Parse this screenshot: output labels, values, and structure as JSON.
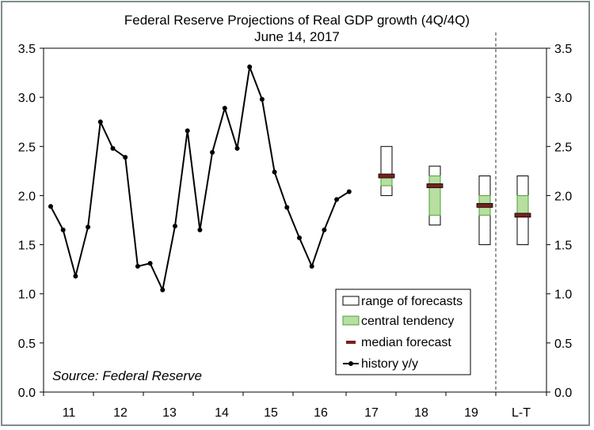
{
  "chart_data": {
    "type": "line",
    "title": "Federal Reserve Projections of Real GDP growth (4Q/4Q)",
    "subtitle": "June 14, 2017",
    "source": "Source: Federal Reserve",
    "ylim": [
      0,
      3.5
    ],
    "yticks": [
      "0.0",
      "0.5",
      "1.0",
      "1.5",
      "2.0",
      "2.5",
      "3.0",
      "3.5"
    ],
    "xticks": [
      "11",
      "12",
      "13",
      "14",
      "15",
      "16",
      "17",
      "18",
      "19",
      "L-T"
    ],
    "grid": false,
    "legend_position": "bottom-right",
    "legend": {
      "range": "range of forecasts",
      "central": "central tendency",
      "median": "median forecast",
      "history": "history y/y"
    },
    "colors": {
      "central_fill": "#b7dfa0",
      "central_stroke": "#4aa33a",
      "median": "#7a1f1f",
      "line": "#000000",
      "frame": "#7f8c8d"
    },
    "history": {
      "name": "history y/y",
      "values": [
        1.89,
        1.65,
        1.18,
        1.68,
        2.75,
        2.48,
        2.39,
        1.28,
        1.31,
        1.04,
        1.69,
        2.66,
        1.65,
        2.44,
        2.89,
        2.48,
        3.31,
        2.98,
        2.24,
        1.88,
        1.57,
        1.28,
        1.65,
        1.96,
        2.04
      ]
    },
    "projections": [
      {
        "label": "17",
        "range": [
          2.0,
          2.5
        ],
        "central": [
          2.1,
          2.2
        ],
        "median": 2.2
      },
      {
        "label": "18",
        "range": [
          1.7,
          2.3
        ],
        "central": [
          1.8,
          2.2
        ],
        "median": 2.1
      },
      {
        "label": "19",
        "range": [
          1.5,
          2.2
        ],
        "central": [
          1.8,
          2.0
        ],
        "median": 1.9
      },
      {
        "label": "L-T",
        "range": [
          1.5,
          2.2
        ],
        "central": [
          1.8,
          2.0
        ],
        "median": 1.8
      }
    ]
  }
}
